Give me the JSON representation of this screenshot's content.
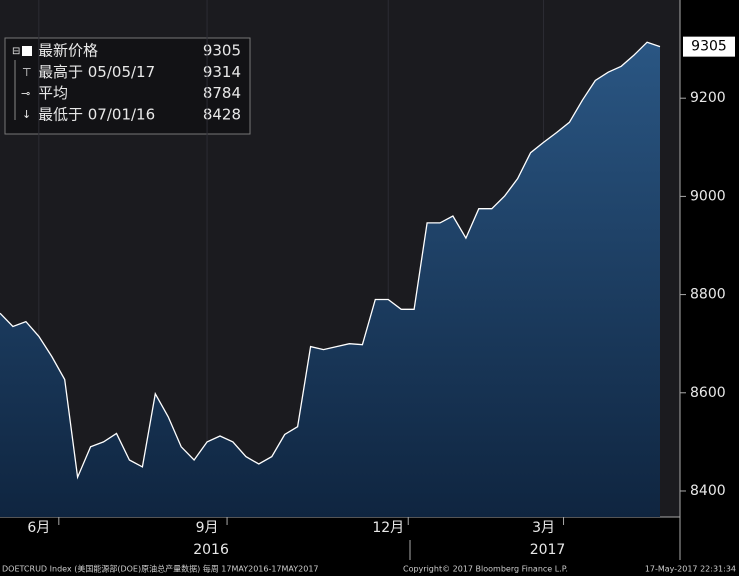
{
  "chart_data": {
    "type": "area",
    "categories": [
      null,
      null,
      null,
      "6月",
      null,
      null,
      null,
      null,
      null,
      null,
      null,
      null,
      null,
      null,
      null,
      null,
      "9月",
      null,
      null,
      null,
      null,
      null,
      null,
      null,
      null,
      null,
      null,
      null,
      null,
      null,
      "12月",
      null,
      null,
      null,
      null,
      null,
      null,
      null,
      null,
      null,
      null,
      null,
      "3月",
      null,
      null,
      null,
      null,
      null,
      null,
      null,
      null,
      null
    ],
    "values": [
      8762,
      8735,
      8745,
      8715,
      8674,
      8627,
      8428,
      8490,
      8500,
      8517,
      8463,
      8449,
      8598,
      8551,
      8490,
      8463,
      8500,
      8512,
      8500,
      8470,
      8455,
      8470,
      8515,
      8531,
      8694,
      8688,
      8694,
      8700,
      8698,
      8790,
      8790,
      8770,
      8770,
      8946,
      8946,
      8960,
      8915,
      8975,
      8975,
      9001,
      9036,
      9089,
      9110,
      9130,
      9151,
      9196,
      9236,
      9253,
      9265,
      9288,
      9314,
      9305
    ],
    "color": "#ffffff",
    "fill_color": "#1d4470",
    "ylim": [
      8347,
      9400
    ],
    "yticks": [
      8400,
      8600,
      8800,
      9000,
      9200
    ],
    "x_groups": [
      "2016",
      "2017"
    ],
    "legend": [
      {
        "label": "最新价格",
        "value": 9305
      },
      {
        "label": "最高于 05/05/17",
        "value": 9314
      },
      {
        "label": "平均",
        "value": 8784
      },
      {
        "label": "最低于 07/01/16",
        "value": 8428
      }
    ],
    "footer": [
      "DOETCRUD Index (美国能源部(DOE)原油总产量数据) 每周 17MAY2016-17MAY2017",
      "Copyright© 2017 Bloomberg Finance L.P.",
      "17-May-2017 22:31:34"
    ]
  }
}
